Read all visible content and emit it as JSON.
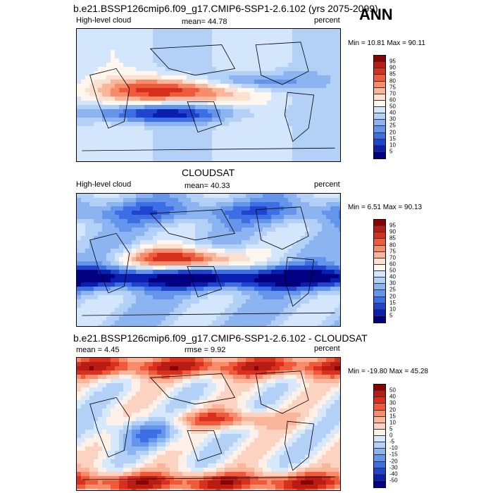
{
  "chart_data": [
    {
      "type": "heatmap",
      "title": "b.e21.BSSP126cmip6.f09_g17.CMIP6-SSP1-2.6.102 (yrs 2075-2099)",
      "season": "ANN",
      "left_label": "High-level cloud",
      "center_label": "mean=  44.78",
      "right_label": "percent",
      "minmax": "Min = 10.81 Max = 90.11",
      "levels": [
        "95",
        "90",
        "85",
        "80",
        "75",
        "70",
        "60",
        "50",
        "40",
        "30",
        "25",
        "20",
        "15",
        "10",
        "5"
      ],
      "colors": [
        "#8b0000",
        "#b81d13",
        "#d7301f",
        "#ef5a3a",
        "#f78c6b",
        "#fbb59a",
        "#fde0d0",
        "#fff7ee",
        "#d3e6fb",
        "#b3d0f7",
        "#8cb4f0",
        "#6495ea",
        "#3c6fe3",
        "#1f45cf",
        "#0a1fb0",
        "#000080"
      ]
    },
    {
      "type": "heatmap",
      "title": "CLOUDSAT",
      "left_label": "High-level cloud",
      "center_label": "mean=  40.33",
      "right_label": "percent",
      "minmax": "Min =  6.51 Max = 90.13",
      "levels": [
        "95",
        "90",
        "85",
        "80",
        "75",
        "70",
        "60",
        "50",
        "40",
        "30",
        "25",
        "20",
        "15",
        "10",
        "5"
      ],
      "colors": [
        "#8b0000",
        "#b81d13",
        "#d7301f",
        "#ef5a3a",
        "#f78c6b",
        "#fbb59a",
        "#fde0d0",
        "#fff7ee",
        "#d3e6fb",
        "#b3d0f7",
        "#8cb4f0",
        "#6495ea",
        "#3c6fe3",
        "#1f45cf",
        "#0a1fb0",
        "#000080"
      ]
    },
    {
      "type": "heatmap",
      "title": "b.e21.BSSP126cmip6.f09_g17.CMIP6-SSP1-2.6.102 - CLOUDSAT",
      "left_label": "mean =   4.45",
      "center_label": "rmse =   9.92",
      "right_label": "percent",
      "minmax": "Min = -19.80 Max =  45.28",
      "levels": [
        "50",
        "40",
        "30",
        "20",
        "15",
        "10",
        "5",
        "0",
        "-5",
        "-10",
        "-15",
        "-20",
        "-30",
        "-40",
        "-50"
      ],
      "colors": [
        "#8b0000",
        "#b81d13",
        "#d7301f",
        "#ef5a3a",
        "#f78c6b",
        "#fbb59a",
        "#fcd3c0",
        "#fff1e8",
        "#d8e8fb",
        "#b3d0f7",
        "#8cb4f0",
        "#6495ea",
        "#3c6fe3",
        "#1f45cf",
        "#0a1fb0",
        "#000080"
      ]
    }
  ]
}
